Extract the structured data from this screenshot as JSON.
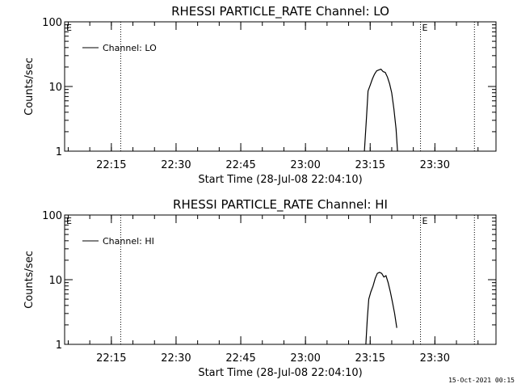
{
  "footer": {
    "timestamp": "15-Oct-2021 00:15"
  },
  "chart_data": [
    {
      "type": "line",
      "title": "RHESSI PARTICLE_RATE Channel: LO",
      "xlabel": "Start Time (28-Jul-08 22:04:10)",
      "ylabel": "Counts/sec",
      "yscale": "log",
      "ylim": [
        1,
        100
      ],
      "xlim": [
        "22:04:10",
        "23:44:10"
      ],
      "xticks": [
        "22:15",
        "22:30",
        "22:45",
        "23:00",
        "23:15",
        "23:30"
      ],
      "yticks": [
        "1",
        "10",
        "100"
      ],
      "grid": false,
      "legend": {
        "position": "top-left",
        "entries": [
          "Channel: LO"
        ]
      },
      "markers": [
        {
          "time": "22:17:10",
          "label": ""
        },
        {
          "time": "23:26:40",
          "label": "E"
        },
        {
          "time": "23:39:10",
          "label": ""
        }
      ],
      "corner_label": "E",
      "series": [
        {
          "name": "Channel: LO",
          "x": [
            "23:13:40",
            "23:14:10",
            "23:14:30",
            "23:15:00",
            "23:15:30",
            "23:16:00",
            "23:16:30",
            "23:17:00",
            "23:17:30",
            "23:18:00",
            "23:18:30",
            "23:19:00",
            "23:19:30",
            "23:20:00",
            "23:20:30",
            "23:21:00",
            "23:21:20"
          ],
          "values": [
            1.0,
            3.5,
            8.5,
            10.5,
            13.0,
            15.5,
            17.5,
            18.0,
            18.5,
            17.0,
            16.5,
            14.0,
            11.0,
            8.0,
            4.5,
            2.2,
            1.0
          ]
        }
      ]
    },
    {
      "type": "line",
      "title": "RHESSI PARTICLE_RATE Channel: HI",
      "xlabel": "Start Time (28-Jul-08 22:04:10)",
      "ylabel": "Counts/sec",
      "yscale": "log",
      "ylim": [
        1,
        100
      ],
      "xlim": [
        "22:04:10",
        "23:44:10"
      ],
      "xticks": [
        "22:15",
        "22:30",
        "22:45",
        "23:00",
        "23:15",
        "23:30"
      ],
      "yticks": [
        "1",
        "10",
        "100"
      ],
      "grid": false,
      "legend": {
        "position": "top-left",
        "entries": [
          "Channel: HI"
        ]
      },
      "markers": [
        {
          "time": "22:17:10",
          "label": ""
        },
        {
          "time": "23:26:40",
          "label": "E"
        },
        {
          "time": "23:39:10",
          "label": ""
        }
      ],
      "corner_label": "E",
      "series": [
        {
          "name": "Channel: HI",
          "x": [
            "23:14:00",
            "23:14:20",
            "23:14:40",
            "23:15:10",
            "23:15:40",
            "23:16:10",
            "23:16:40",
            "23:17:10",
            "23:17:40",
            "23:18:10",
            "23:18:40",
            "23:19:10",
            "23:19:40",
            "23:20:10",
            "23:20:40",
            "23:21:10"
          ],
          "values": [
            1.0,
            2.5,
            5.0,
            6.5,
            8.0,
            10.5,
            12.5,
            13.0,
            12.5,
            11.0,
            11.5,
            9.0,
            6.5,
            4.5,
            3.0,
            1.8
          ]
        }
      ]
    }
  ]
}
